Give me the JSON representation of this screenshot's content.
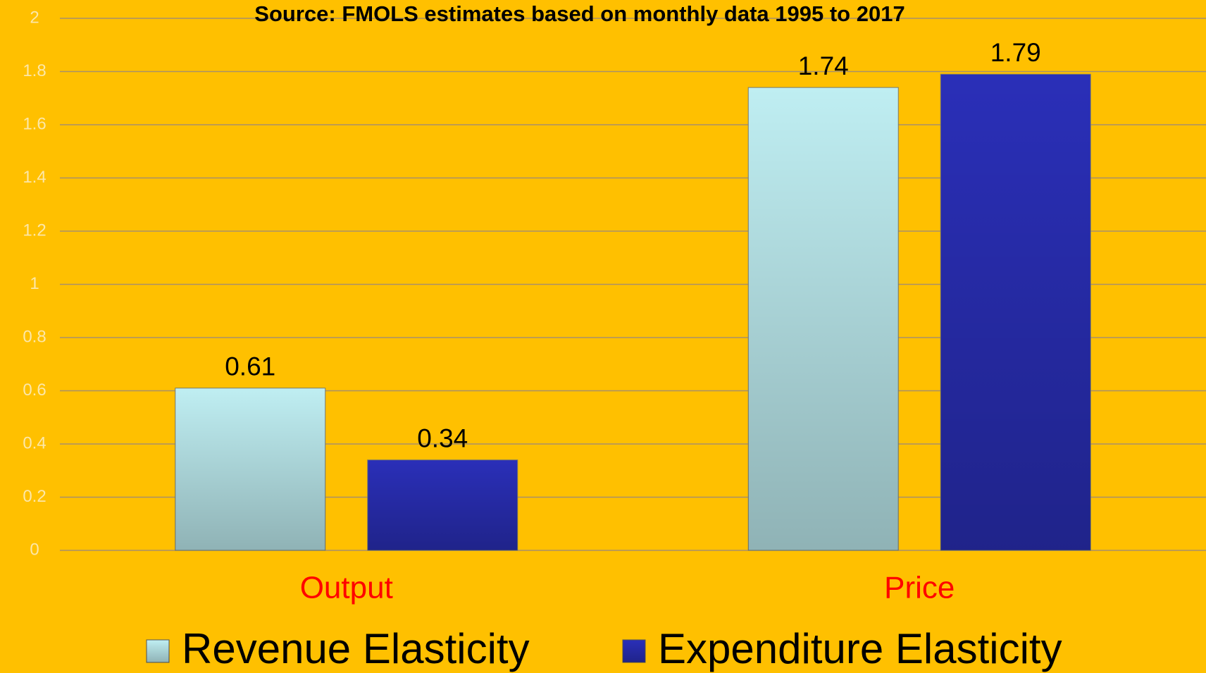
{
  "chart_data": {
    "type": "bar",
    "title": "Source: FMOLS estimates based on monthly data 1995 to 2017",
    "categories": [
      "Output",
      "Price"
    ],
    "series": [
      {
        "name": "Revenue Elasticity",
        "color": "#bfeef2",
        "values": [
          0.61,
          1.74
        ]
      },
      {
        "name": "Expenditure Elasticity",
        "color": "#2a2fb8",
        "values": [
          0.34,
          1.79
        ]
      }
    ],
    "ylim": [
      0,
      2
    ],
    "yticks": [
      0,
      0.2,
      0.4,
      0.6,
      0.8,
      1,
      1.2,
      1.4,
      1.6,
      1.8,
      2
    ],
    "grid": true,
    "legend": "bottom"
  }
}
